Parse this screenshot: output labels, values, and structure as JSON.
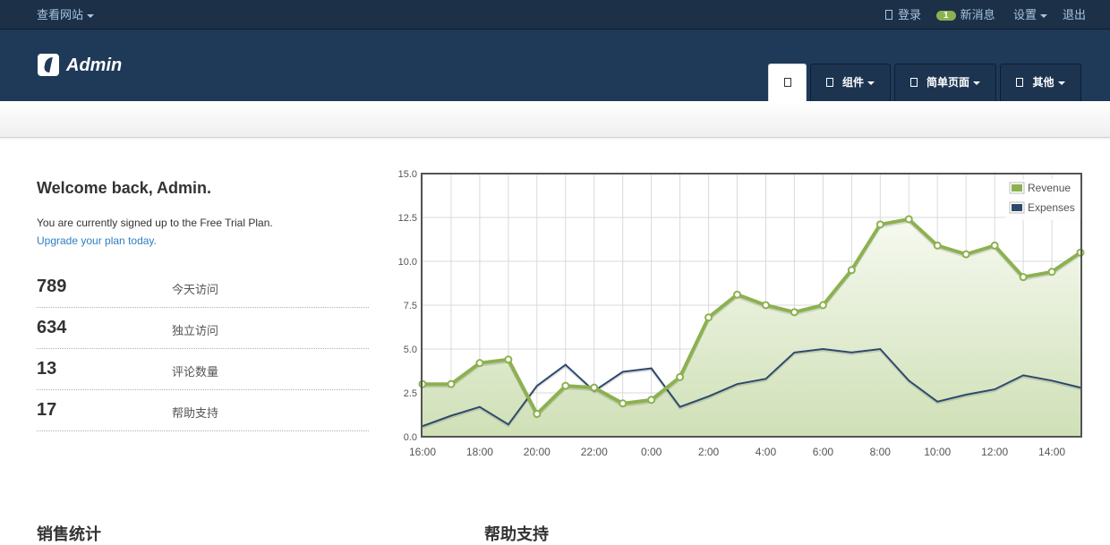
{
  "topbar": {
    "view_site": "查看网站",
    "login": "登录",
    "messages_count": "1",
    "messages": "新消息",
    "settings": "设置",
    "logout": "退出"
  },
  "header": {
    "logo_text": "Admin"
  },
  "nav": {
    "tabs": [
      {
        "label": "",
        "icon": "home-icon",
        "active": true
      },
      {
        "label": "组件",
        "icon": "components-icon",
        "dropdown": true
      },
      {
        "label": "简单页面",
        "icon": "pages-icon",
        "dropdown": true
      },
      {
        "label": "其他",
        "icon": "other-icon",
        "dropdown": true
      }
    ]
  },
  "welcome": {
    "title": "Welcome back, Admin.",
    "plan_text": "You are currently signed up to the Free Trial Plan.",
    "upgrade_link": "Upgrade your plan today."
  },
  "stats": [
    {
      "value": "789",
      "label": "今天访问"
    },
    {
      "value": "634",
      "label": "独立访问"
    },
    {
      "value": "13",
      "label": "评论数量"
    },
    {
      "value": "17",
      "label": "帮助支持"
    }
  ],
  "sections": {
    "sales_title": "销售统计",
    "support_title": "帮助支持"
  },
  "colors": {
    "topbar_bg": "#1c3048",
    "header_bg": "#1f3a58",
    "revenue": "#8cb150",
    "expenses": "#2d4a6c",
    "link": "#2d7ec2"
  },
  "chart_data": {
    "type": "area",
    "x": [
      "16:00",
      "17:00",
      "18:00",
      "19:00",
      "20:00",
      "21:00",
      "22:00",
      "23:00",
      "0:00",
      "1:00",
      "2:00",
      "3:00",
      "4:00",
      "5:00",
      "6:00",
      "7:00",
      "8:00",
      "9:00",
      "10:00",
      "11:00",
      "12:00",
      "13:00",
      "14:00",
      "15:00"
    ],
    "x_tick_labels": [
      "16:00",
      "18:00",
      "20:00",
      "22:00",
      "0:00",
      "2:00",
      "4:00",
      "6:00",
      "8:00",
      "10:00",
      "12:00",
      "14:00"
    ],
    "y_ticks": [
      "0.0",
      "2.5",
      "5.0",
      "7.5",
      "10.0",
      "12.5",
      "15.0"
    ],
    "ylim": [
      0,
      15
    ],
    "grid": true,
    "legend_position": "top-right",
    "series": [
      {
        "name": "Revenue",
        "type": "area",
        "color": "#8cb150",
        "values": [
          3.0,
          3.0,
          4.2,
          4.4,
          1.3,
          2.9,
          2.8,
          1.9,
          2.1,
          3.4,
          6.8,
          8.1,
          7.5,
          7.1,
          7.5,
          9.5,
          12.1,
          12.4,
          10.9,
          10.4,
          10.9,
          9.1,
          9.4,
          10.5
        ]
      },
      {
        "name": "Expenses",
        "type": "line",
        "color": "#2d4a6c",
        "values": [
          0.6,
          1.2,
          1.7,
          0.7,
          2.9,
          4.1,
          2.6,
          3.7,
          3.9,
          1.7,
          2.3,
          3.0,
          3.3,
          4.8,
          5.0,
          4.8,
          5.0,
          3.2,
          2.0,
          2.4,
          2.7,
          3.5,
          3.2,
          2.8
        ]
      }
    ]
  }
}
